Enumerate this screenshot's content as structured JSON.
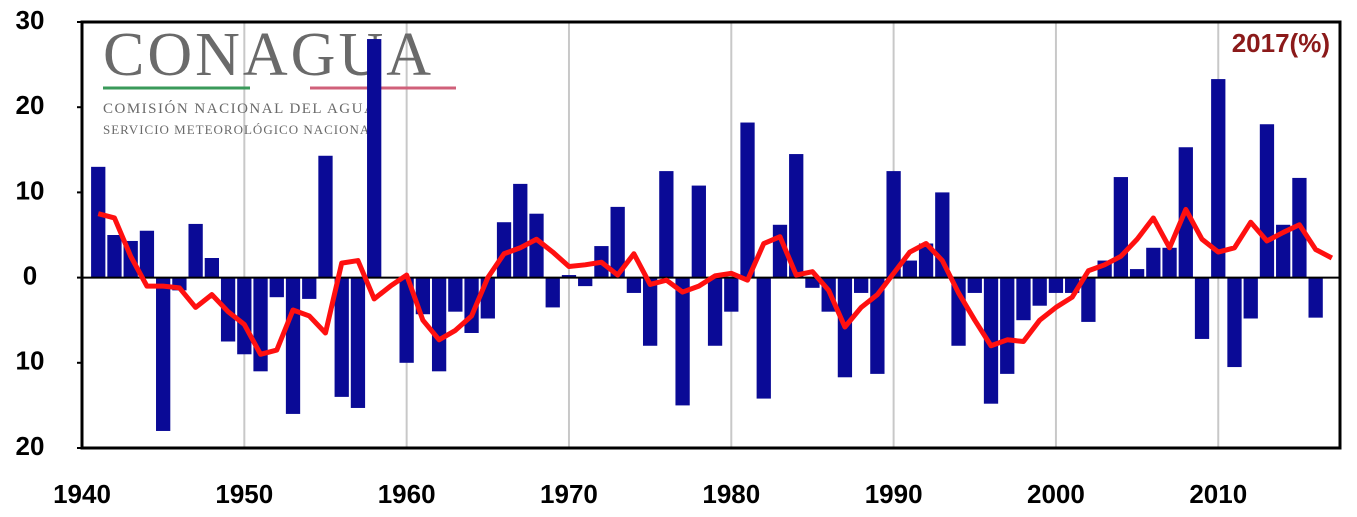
{
  "chart_data": {
    "type": "bar",
    "logo": {
      "title": "CONAGUA",
      "line1": "COMISIÓN NACIONAL DEL AGUA",
      "line2": "SERVICIO METEOROLÓGICO NACIONAL"
    },
    "annotation": "2017(%)",
    "x": [
      1941,
      1942,
      1943,
      1944,
      1945,
      1946,
      1947,
      1948,
      1949,
      1950,
      1951,
      1952,
      1953,
      1954,
      1955,
      1956,
      1957,
      1958,
      1959,
      1960,
      1961,
      1962,
      1963,
      1964,
      1965,
      1966,
      1967,
      1968,
      1969,
      1970,
      1971,
      1972,
      1973,
      1974,
      1975,
      1976,
      1977,
      1978,
      1979,
      1980,
      1981,
      1982,
      1983,
      1984,
      1985,
      1986,
      1987,
      1988,
      1989,
      1990,
      1991,
      1992,
      1993,
      1994,
      1995,
      1996,
      1997,
      1998,
      1999,
      2000,
      2001,
      2002,
      2003,
      2004,
      2005,
      2006,
      2007,
      2008,
      2009,
      2010,
      2011,
      2012,
      2013,
      2014,
      2015,
      2016,
      2017
    ],
    "series": [
      {
        "type": "bar",
        "color": "#0a0a96",
        "values": [
          13,
          5,
          4.3,
          5.5,
          -18,
          -1.5,
          6.3,
          2.3,
          -7.5,
          -9,
          -11,
          -2.3,
          -16,
          -2.5,
          14.3,
          -14,
          -15.3,
          28,
          0,
          -10,
          -4.3,
          -11,
          -4,
          -6.5,
          -4.8,
          6.5,
          11,
          7.5,
          -3.5,
          0.3,
          -1,
          3.7,
          8.3,
          -1.8,
          -8,
          12.5,
          -15,
          10.8,
          -8,
          -4,
          18.2,
          -14.2,
          6.2,
          14.5,
          -1.2,
          -4,
          -11.7,
          -1.8,
          -11.3,
          12.5,
          2,
          4,
          10,
          -8,
          -1.8,
          -14.8,
          -11.3,
          -5,
          -3.3,
          -1.8,
          -1.8,
          -5.2,
          2,
          11.8,
          1,
          3.5,
          3.5,
          15.3,
          -7.2,
          23.3,
          -10.5,
          -4.8,
          18,
          6.2,
          11.7,
          -4.7,
          null
        ]
      },
      {
        "type": "line",
        "color": "#ff1010",
        "values": [
          7.5,
          7,
          2.5,
          -1,
          -1,
          -1.2,
          -3.5,
          -2,
          -4,
          -5.5,
          -9,
          -8.5,
          -3.8,
          -4.5,
          -6.5,
          1.7,
          2,
          -2.5,
          -1,
          0.3,
          -5,
          -7.3,
          -6.2,
          -4.5,
          0,
          2.8,
          3.5,
          4.5,
          3,
          1.3,
          1.5,
          1.8,
          0.3,
          2.8,
          -0.8,
          -0.3,
          -1.7,
          -1,
          0.2,
          0.5,
          -0.3,
          4,
          4.8,
          0.3,
          0.7,
          -1.5,
          -5.8,
          -3.5,
          -2,
          0.5,
          3,
          4,
          2,
          -1.8,
          -5,
          -8,
          -7.3,
          -7.5,
          -5,
          -3.5,
          -2.3,
          0.8,
          1.5,
          2.5,
          4.5,
          7,
          3.5,
          8,
          4.5,
          3,
          3.5,
          6.5,
          4.3,
          5.3,
          6.2,
          3.3,
          2.3
        ]
      }
    ],
    "xlim": [
      1940,
      2017.5
    ],
    "xticks": [
      1940,
      1950,
      1960,
      1970,
      1980,
      1990,
      2000,
      2010
    ],
    "ylim": [
      -20,
      30
    ],
    "yticks": [
      30,
      20,
      10,
      0,
      {
        "value": -10,
        "label": "10"
      },
      {
        "value": -20,
        "label": "20"
      }
    ],
    "grid": "x"
  }
}
